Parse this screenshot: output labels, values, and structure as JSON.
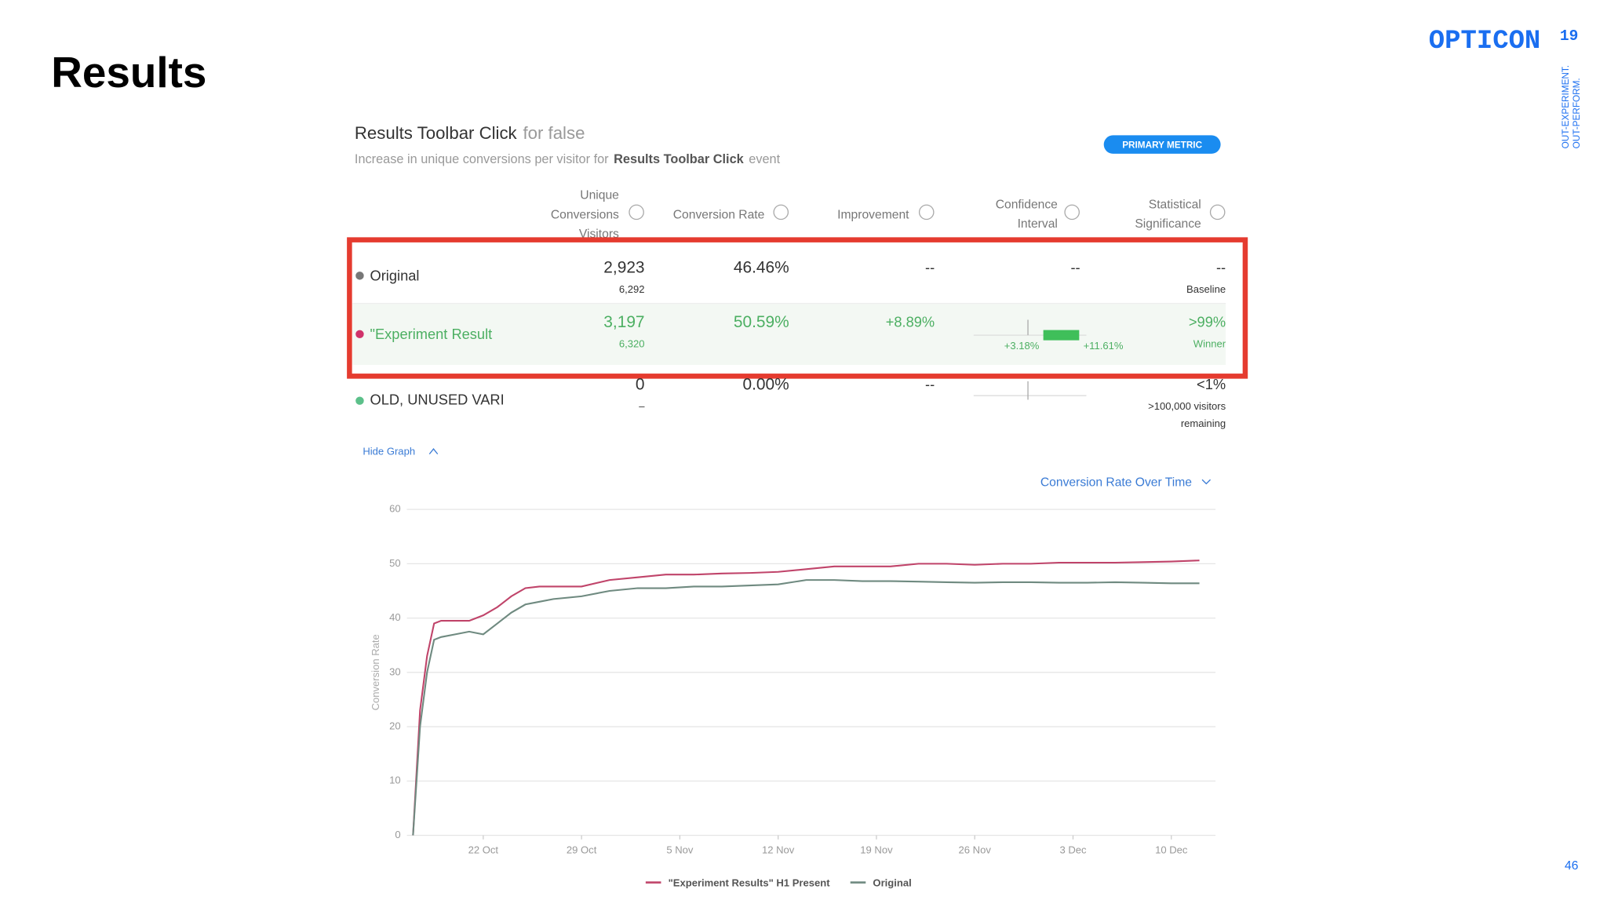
{
  "slide": {
    "title": "Results",
    "brand": "OPTICON",
    "brand_superscript": "19",
    "tagline": [
      "OUT-EXPERIMENT.",
      "OUT-PERFORM."
    ],
    "page_number": "46"
  },
  "panel": {
    "title": "Results Toolbar Click",
    "title_suffix": "for false",
    "subtitle": [
      "Increase in unique conversions per visitor for",
      "Results Toolbar Click",
      "event"
    ],
    "badge": "PRIMARY METRIC",
    "columns": [
      [
        "Unique",
        "Conversions",
        "Visitors"
      ],
      [
        "Conversion Rate"
      ],
      [
        "Improvement"
      ],
      [
        "Confidence",
        "Interval"
      ],
      [
        "Statistical",
        "Significance"
      ]
    ],
    "rows": [
      {
        "name": "Original",
        "conversions": "2,923",
        "visitors": "6,292",
        "conversion_rate": "46.46%",
        "improvement": "--",
        "ci": "--",
        "significance": "--",
        "significance_note": [
          "Baseline"
        ]
      },
      {
        "name": "\"Experiment Result",
        "conversions": "3,197",
        "visitors": "6,320",
        "conversion_rate": "50.59%",
        "improvement": "+8.89%",
        "ci_low": "+3.18%",
        "ci_high": "+11.61%",
        "significance": ">99%",
        "significance_note": [
          "Winner"
        ]
      },
      {
        "name": "OLD, UNUSED VARI",
        "conversions": "0",
        "visitors": "–",
        "conversion_rate": "0.00%",
        "improvement": "--",
        "significance": "<1%",
        "significance_note": [
          ">100,000 visitors",
          "remaining"
        ]
      }
    ],
    "hide_graph": "Hide Graph",
    "graph_select": "Conversion Rate Over Time"
  },
  "chart_data": {
    "type": "line",
    "y_label": "Conversion Rate",
    "x": [
      0,
      0.5,
      1,
      1.5,
      2,
      3,
      4,
      5,
      6,
      7,
      8,
      9,
      10,
      12,
      14,
      16,
      18,
      20,
      22,
      24,
      26,
      28,
      30,
      32,
      34,
      36,
      38,
      40,
      42,
      44,
      46,
      48,
      50,
      52,
      54,
      56
    ],
    "series": [
      {
        "name": "\"Experiment Results\" H1 Present",
        "color": "#c0446a",
        "values": [
          0,
          23,
          33,
          39,
          39.5,
          39.5,
          39.5,
          40.5,
          42,
          44,
          45.5,
          45.8,
          45.8,
          45.8,
          47,
          47.5,
          48,
          48,
          48.2,
          48.3,
          48.5,
          49,
          49.5,
          49.5,
          49.5,
          50,
          50,
          49.8,
          50,
          50,
          50.2,
          50.2,
          50.2,
          50.3,
          50.4,
          50.6
        ]
      },
      {
        "name": "Original",
        "color": "#6f8a80",
        "values": [
          0,
          20,
          30,
          36,
          36.5,
          37,
          37.5,
          37,
          39,
          41,
          42.5,
          43,
          43.5,
          44,
          45,
          45.5,
          45.5,
          45.8,
          45.8,
          46,
          46.2,
          47,
          47,
          46.8,
          46.8,
          46.7,
          46.6,
          46.5,
          46.6,
          46.6,
          46.5,
          46.5,
          46.6,
          46.5,
          46.4,
          46.4
        ]
      }
    ],
    "xlim": [
      0,
      57
    ],
    "xticks": [
      {
        "value": 5,
        "label": "22 Oct"
      },
      {
        "value": 12,
        "label": "29 Oct"
      },
      {
        "value": 19,
        "label": "5 Nov"
      },
      {
        "value": 26,
        "label": "12 Nov"
      },
      {
        "value": 33,
        "label": "19 Nov"
      },
      {
        "value": 40,
        "label": "26 Nov"
      },
      {
        "value": 47,
        "label": "3 Dec"
      },
      {
        "value": 54,
        "label": "10 Dec"
      }
    ],
    "ylim": [
      0,
      60
    ],
    "yticks": [
      0,
      10,
      20,
      30,
      40,
      50,
      60
    ],
    "grid": true
  }
}
